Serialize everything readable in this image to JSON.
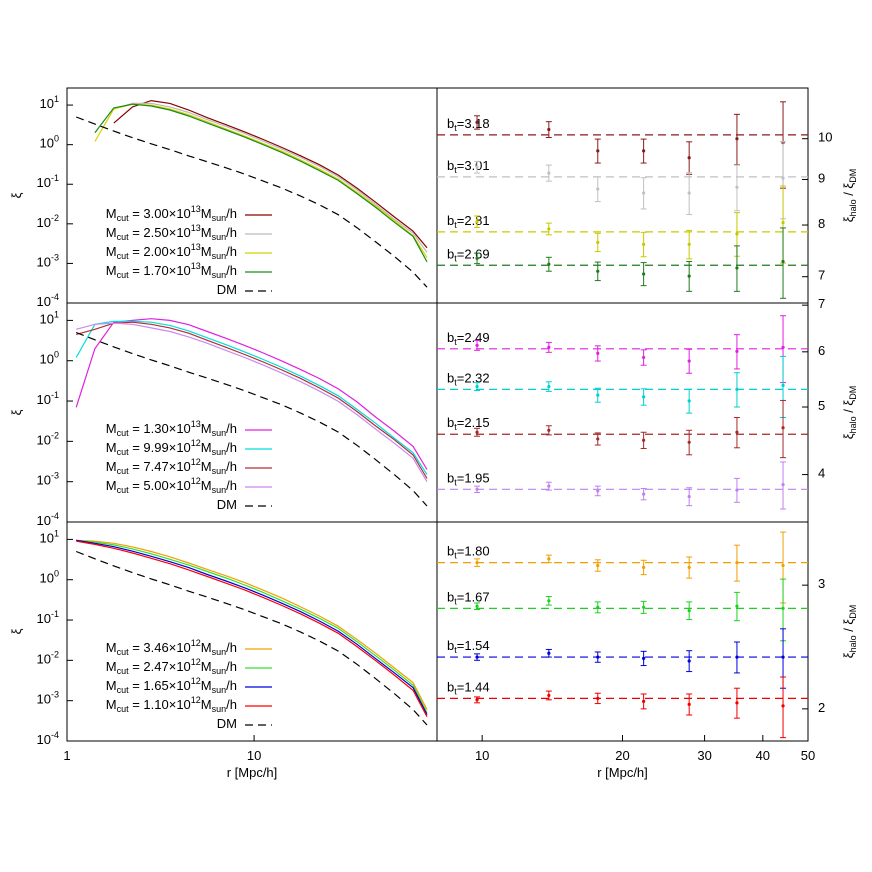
{
  "chart_data": [
    {
      "type": "line",
      "xlog": true,
      "ylog": true,
      "xlim": [
        1,
        95
      ],
      "ylim": [
        0.0001,
        27
      ],
      "yticks": [
        {
          "value": 0.0001,
          "label": "10^{-4}"
        },
        {
          "value": 0.001,
          "label": "10^{-3}"
        },
        {
          "value": 0.01,
          "label": "10^{-2}"
        },
        {
          "value": 0.1,
          "label": "10^{-1}"
        },
        {
          "value": 1,
          "label": "10^{0}"
        },
        {
          "value": 10,
          "label": "10^{1}"
        }
      ],
      "ylabel": "ξ",
      "x": [
        1.12,
        1.41,
        1.78,
        2.24,
        2.82,
        3.55,
        4.47,
        5.62,
        7.08,
        8.91,
        11.2,
        14.1,
        17.8,
        22.4,
        28.2,
        35.5,
        44.7,
        56.2,
        70.8,
        84
      ],
      "series": [
        {
          "name": "M_{cut} = 3.00×10^{13}M_{sun}/h",
          "color": "#8b0000",
          "values": [
            null,
            null,
            3.5,
            9,
            13,
            11,
            7.5,
            4.8,
            3.2,
            2.1,
            1.35,
            0.85,
            0.52,
            0.31,
            0.17,
            0.08,
            0.035,
            0.015,
            0.0065,
            0.0025
          ]
        },
        {
          "name": "M_{cut} = 2.50×10^{13}M_{sun}/h",
          "color": "#bbbbbb",
          "values": [
            null,
            null,
            8,
            11,
            11,
            9,
            6.5,
            4.3,
            2.9,
            1.9,
            1.22,
            0.77,
            0.47,
            0.28,
            0.155,
            0.072,
            0.031,
            0.013,
            0.0058,
            0.0019
          ]
        },
        {
          "name": "M_{cut} = 2.00×10^{13}M_{sun}/h",
          "color": "#d4d400",
          "values": [
            null,
            1.2,
            8,
            10.5,
            10,
            8,
            5.7,
            3.8,
            2.5,
            1.65,
            1.07,
            0.68,
            0.41,
            0.24,
            0.135,
            0.063,
            0.028,
            0.012,
            0.005,
            0.0014
          ]
        },
        {
          "name": "M_{cut} = 1.70×10^{13}M_{sun}/h",
          "color": "#1a8c1a",
          "values": [
            null,
            2,
            8.5,
            10.5,
            9.5,
            7.5,
            5.3,
            3.5,
            2.35,
            1.55,
            1.0,
            0.63,
            0.38,
            0.22,
            0.125,
            0.058,
            0.026,
            0.011,
            0.0048,
            0.0011
          ]
        },
        {
          "name": "DM",
          "color": "#000000",
          "dash": true,
          "values": [
            5,
            3.3,
            2.2,
            1.5,
            1.05,
            0.75,
            0.52,
            0.37,
            0.26,
            0.18,
            0.12,
            0.08,
            0.05,
            0.03,
            0.017,
            0.008,
            0.0035,
            0.0015,
            0.0006,
            0.00025
          ]
        }
      ]
    },
    {
      "type": "errorbar",
      "xlog": true,
      "ylog": true,
      "xlim": [
        8,
        50
      ],
      "ylim": [
        6.54,
        11.4
      ],
      "yticks": [
        7,
        8,
        9,
        10
      ],
      "ylabel": "ξ_{halo} / ξ_{DM}",
      "x": [
        9.75,
        13.9,
        17.7,
        22.2,
        27.8,
        35.2,
        44.2
      ],
      "series": [
        {
          "label": "b_{t}=3.18",
          "color": "#8b1a1a",
          "level": 10.1,
          "values": [
            10.43,
            10.24,
            9.69,
            9.69,
            9.52,
            10.0,
            9.9
          ],
          "errors": [
            0.18,
            0.21,
            0.3,
            0.3,
            0.4,
            0.65,
            1.1
          ]
        },
        {
          "label": "b_{t}=3.01",
          "color": "#c0c0c0",
          "level": 9.06,
          "values": [
            9.29,
            9.15,
            8.78,
            8.69,
            8.69,
            8.82,
            9.03
          ],
          "errors": [
            0.14,
            0.19,
            0.28,
            0.35,
            0.47,
            0.52,
            0.9
          ]
        },
        {
          "label": "b_{t}=2.81",
          "color": "#c8c800",
          "level": 7.86,
          "values": [
            8.07,
            7.92,
            7.65,
            7.61,
            7.61,
            7.82,
            8.05
          ],
          "errors": [
            0.12,
            0.12,
            0.18,
            0.24,
            0.28,
            0.44,
            0.8
          ]
        },
        {
          "label": "b_{t}=2.69",
          "color": "#1f7a1f",
          "level": 7.21,
          "values": [
            7.34,
            7.23,
            7.1,
            7.05,
            7.01,
            7.16,
            7.28
          ],
          "errors": [
            0.1,
            0.13,
            0.17,
            0.21,
            0.27,
            0.42,
            0.66
          ]
        }
      ]
    },
    {
      "type": "line",
      "xlog": true,
      "ylog": true,
      "xlim": [
        1,
        95
      ],
      "ylim": [
        0.0001,
        27
      ],
      "yticks": [
        {
          "value": 0.0001,
          "label": "10^{-4}"
        },
        {
          "value": 0.001,
          "label": "10^{-3}"
        },
        {
          "value": 0.01,
          "label": "10^{-2}"
        },
        {
          "value": 0.1,
          "label": "10^{-1}"
        },
        {
          "value": 1,
          "label": "10^{0}"
        },
        {
          "value": 10,
          "label": "10^{1}"
        }
      ],
      "ylabel": "ξ",
      "x": [
        1.12,
        1.41,
        1.78,
        2.24,
        2.82,
        3.55,
        4.47,
        5.62,
        7.08,
        8.91,
        11.2,
        14.1,
        17.8,
        22.4,
        28.2,
        35.5,
        44.7,
        56.2,
        70.8,
        84
      ],
      "series": [
        {
          "name": "M_{cut} = 1.30×10^{13}M_{sun}/h",
          "color": "#e020e0",
          "values": [
            0.07,
            2,
            9,
            10,
            11,
            10,
            7.8,
            5.3,
            3.6,
            2.4,
            1.55,
            0.98,
            0.6,
            0.36,
            0.2,
            0.095,
            0.04,
            0.018,
            0.0075,
            0.002
          ]
        },
        {
          "name": "M_{cut} = 9.99×10^{12}M_{sun}/h",
          "color": "#00dede",
          "values": [
            1.2,
            8,
            9.5,
            9.5,
            9,
            7.5,
            5.5,
            3.7,
            2.5,
            1.65,
            1.07,
            0.68,
            0.41,
            0.24,
            0.135,
            0.062,
            0.028,
            0.012,
            0.0052,
            0.0015
          ]
        },
        {
          "name": "M_{cut} = 7.47×10^{12}M_{sun}/h",
          "color": "#b03030",
          "values": [
            4.5,
            6,
            8.5,
            9,
            8,
            6.5,
            4.8,
            3.2,
            2.15,
            1.43,
            0.93,
            0.59,
            0.36,
            0.21,
            0.118,
            0.055,
            0.024,
            0.011,
            0.0046,
            0.0012
          ]
        },
        {
          "name": "M_{cut} = 5.00×10^{12}M_{sun}/h",
          "color": "#cc88ee",
          "values": [
            6,
            8,
            8.5,
            8,
            6.5,
            5.3,
            3.9,
            2.7,
            1.8,
            1.2,
            0.78,
            0.49,
            0.3,
            0.175,
            0.098,
            0.046,
            0.02,
            0.009,
            0.0038,
            0.001
          ]
        },
        {
          "name": "DM",
          "color": "#000000",
          "dash": true,
          "values": [
            5,
            3.3,
            2.2,
            1.5,
            1.05,
            0.75,
            0.52,
            0.37,
            0.26,
            0.18,
            0.12,
            0.08,
            0.05,
            0.03,
            0.017,
            0.008,
            0.0035,
            0.0015,
            0.0006,
            0.00025
          ]
        }
      ]
    },
    {
      "type": "errorbar",
      "xlog": true,
      "ylog": true,
      "xlim": [
        8,
        50
      ],
      "ylim": [
        3.42,
        7.05
      ],
      "yticks": [
        4,
        5,
        6,
        7
      ],
      "ylabel": "ξ_{halo} / ξ_{DM}",
      "x": [
        9.75,
        13.9,
        17.7,
        22.2,
        27.8,
        35.2,
        44.2
      ],
      "series": [
        {
          "label": "b_{t}=2.49",
          "color": "#e020e0",
          "level": 6.06,
          "values": [
            6.13,
            6.09,
            5.97,
            5.89,
            5.82,
            6.01,
            6.09
          ],
          "errors": [
            0.1,
            0.1,
            0.15,
            0.15,
            0.23,
            0.34,
            0.67
          ]
        },
        {
          "label": "b_{t}=2.32",
          "color": "#00d0d0",
          "level": 5.3,
          "values": [
            5.35,
            5.35,
            5.2,
            5.17,
            5.1,
            5.3,
            5.37
          ],
          "errors": [
            0.07,
            0.085,
            0.12,
            0.14,
            0.2,
            0.3,
            0.54
          ]
        },
        {
          "label": "b_{t}=2.15",
          "color": "#a52a2a",
          "level": 4.57,
          "values": [
            4.6,
            4.63,
            4.5,
            4.48,
            4.45,
            4.6,
            4.67
          ],
          "errors": [
            0.06,
            0.07,
            0.09,
            0.12,
            0.18,
            0.23,
            0.44
          ]
        },
        {
          "label": "b_{t}=1.95",
          "color": "#c080f0",
          "level": 3.81,
          "values": [
            3.81,
            3.85,
            3.79,
            3.75,
            3.72,
            3.8,
            3.87
          ],
          "errors": [
            0.04,
            0.05,
            0.06,
            0.07,
            0.11,
            0.15,
            0.3
          ]
        }
      ]
    },
    {
      "type": "line",
      "xlog": true,
      "ylog": true,
      "xlim": [
        1,
        95
      ],
      "ylim": [
        0.0001,
        27
      ],
      "xticks": [
        1,
        10
      ],
      "xlabel": "r [Mpc/h]",
      "yticks": [
        {
          "value": 0.0001,
          "label": "10^{-4}"
        },
        {
          "value": 0.001,
          "label": "10^{-3}"
        },
        {
          "value": 0.01,
          "label": "10^{-2}"
        },
        {
          "value": 0.1,
          "label": "10^{-1}"
        },
        {
          "value": 1,
          "label": "10^{0}"
        },
        {
          "value": 10,
          "label": "10^{1}"
        }
      ],
      "ylabel": "ξ",
      "x": [
        1.12,
        1.41,
        1.78,
        2.24,
        2.82,
        3.55,
        4.47,
        5.62,
        7.08,
        8.91,
        11.2,
        14.1,
        17.8,
        22.4,
        28.2,
        35.5,
        44.7,
        56.2,
        70.8,
        84
      ],
      "series": [
        {
          "name": "M_{cut} = 3.46×10^{12}M_{sun}/h",
          "color": "#f0a000",
          "values": [
            9.5,
            9,
            8,
            6.5,
            5,
            3.7,
            2.6,
            1.8,
            1.25,
            0.85,
            0.55,
            0.35,
            0.21,
            0.125,
            0.07,
            0.033,
            0.015,
            0.0065,
            0.0028,
            0.0006
          ]
        },
        {
          "name": "M_{cut} = 2.47×10^{12}M_{sun}/h",
          "color": "#30e030",
          "values": [
            9.5,
            8.5,
            7.3,
            5.8,
            4.4,
            3.2,
            2.3,
            1.6,
            1.1,
            0.74,
            0.48,
            0.3,
            0.185,
            0.11,
            0.062,
            0.029,
            0.013,
            0.0057,
            0.0024,
            0.0005
          ]
        },
        {
          "name": "M_{cut} = 1.65×10^{12}M_{sun}/h",
          "color": "#0000dd",
          "values": [
            9.5,
            8,
            6.6,
            5.1,
            3.8,
            2.8,
            2,
            1.35,
            0.93,
            0.63,
            0.41,
            0.26,
            0.16,
            0.094,
            0.053,
            0.025,
            0.011,
            0.0049,
            0.0021,
            0.00045
          ]
        },
        {
          "name": "M_{cut} = 1.10×10^{12}M_{sun}/h",
          "color": "#ff0000",
          "values": [
            9,
            7.5,
            6,
            4.6,
            3.4,
            2.5,
            1.75,
            1.2,
            0.82,
            0.56,
            0.36,
            0.23,
            0.14,
            0.083,
            0.047,
            0.022,
            0.0098,
            0.0043,
            0.0018,
            0.0004
          ]
        },
        {
          "name": "DM",
          "color": "#000000",
          "dash": true,
          "values": [
            5,
            3.3,
            2.2,
            1.5,
            1.05,
            0.75,
            0.52,
            0.37,
            0.26,
            0.18,
            0.12,
            0.08,
            0.05,
            0.03,
            0.017,
            0.008,
            0.0035,
            0.0015,
            0.0006,
            0.00025
          ]
        }
      ]
    },
    {
      "type": "errorbar",
      "xlog": true,
      "ylog": true,
      "xlim": [
        8,
        50
      ],
      "ylim": [
        1.8,
        3.69
      ],
      "yticks": [
        2,
        3
      ],
      "xticks": [
        10,
        20,
        30,
        40,
        50
      ],
      "xlabel": "r [Mpc/h]",
      "ylabel": "ξ_{halo} / ξ_{DM}",
      "x": [
        9.75,
        13.9,
        17.7,
        22.2,
        27.8,
        35.2,
        44.2
      ],
      "series": [
        {
          "label": "b_{t}=1.80",
          "color": "#f0a000",
          "level": 3.23,
          "values": [
            3.23,
            3.27,
            3.2,
            3.18,
            3.18,
            3.23,
            3.2
          ],
          "errors": [
            0.04,
            0.04,
            0.06,
            0.075,
            0.11,
            0.19,
            0.37
          ]
        },
        {
          "label": "b_{t}=1.67",
          "color": "#20d020",
          "level": 2.78,
          "values": [
            2.8,
            2.85,
            2.79,
            2.79,
            2.76,
            2.8,
            2.78
          ],
          "errors": [
            0.03,
            0.04,
            0.05,
            0.055,
            0.08,
            0.13,
            0.28
          ]
        },
        {
          "label": "b_{t}=1.54",
          "color": "#0000dd",
          "level": 2.37,
          "values": [
            2.37,
            2.4,
            2.37,
            2.36,
            2.34,
            2.37,
            2.37
          ],
          "errors": [
            0.025,
            0.03,
            0.04,
            0.055,
            0.08,
            0.12,
            0.23
          ]
        },
        {
          "label": "b_{t}=1.44",
          "color": "#ee0000",
          "level": 2.07,
          "values": [
            2.06,
            2.09,
            2.07,
            2.05,
            2.03,
            2.04,
            2.02
          ],
          "errors": [
            0.02,
            0.03,
            0.035,
            0.05,
            0.07,
            0.1,
            0.2
          ]
        }
      ]
    }
  ]
}
